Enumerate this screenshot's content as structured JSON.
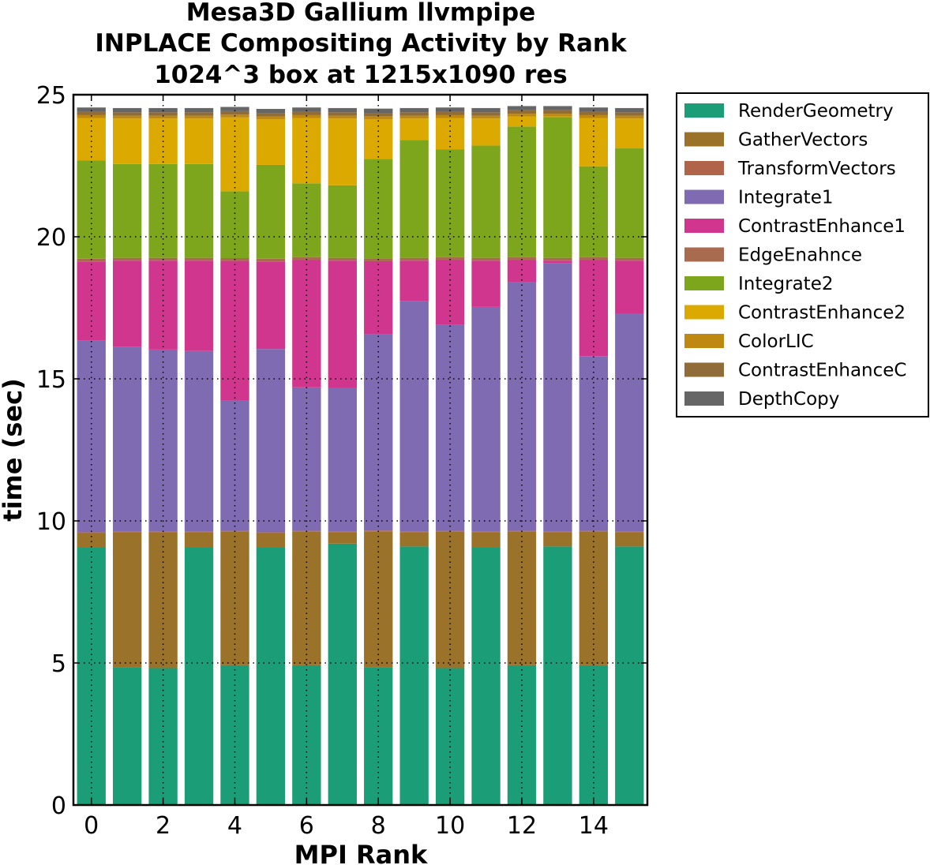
{
  "chart_data": {
    "type": "bar",
    "stacked": true,
    "title_lines": [
      "Mesa3D Gallium llvmpipe",
      "INPLACE Compositing Activity by Rank",
      "1024^3 box at 1215x1090 res"
    ],
    "xlabel": "MPI Rank",
    "ylabel": "time (sec)",
    "x": [
      0,
      1,
      2,
      3,
      4,
      5,
      6,
      7,
      8,
      9,
      10,
      11,
      12,
      13,
      14,
      15
    ],
    "xticks": [
      "0",
      "2",
      "4",
      "6",
      "8",
      "10",
      "12",
      "14"
    ],
    "yticks": [
      "0",
      "5",
      "10",
      "15",
      "20",
      "25"
    ],
    "xlim": [
      -0.5,
      15.5
    ],
    "ylim": [
      0,
      25
    ],
    "grid": true,
    "legend_position": "outside-right",
    "series": [
      {
        "name": "RenderGeometry",
        "color": "#1b9e77",
        "values": [
          9.07,
          4.85,
          4.82,
          9.07,
          4.92,
          9.07,
          4.92,
          9.2,
          4.85,
          9.1,
          4.82,
          9.07,
          4.92,
          9.1,
          4.92,
          9.1
        ]
      },
      {
        "name": "GatherVectors",
        "color": "#9a722a",
        "values": [
          0.5,
          4.75,
          4.78,
          0.53,
          4.7,
          0.5,
          4.7,
          0.4,
          4.78,
          0.5,
          4.8,
          0.53,
          4.7,
          0.5,
          4.7,
          0.5
        ]
      },
      {
        "name": "TransformVectors",
        "color": "#b0654b",
        "values": [
          0.03,
          0.03,
          0.03,
          0.03,
          0.03,
          0.03,
          0.03,
          0.03,
          0.03,
          0.03,
          0.03,
          0.03,
          0.03,
          0.03,
          0.03,
          0.03
        ]
      },
      {
        "name": "Integrate1",
        "color": "#7e6bb1",
        "values": [
          6.75,
          6.5,
          6.4,
          6.35,
          4.6,
          6.45,
          5.05,
          5.05,
          6.9,
          8.1,
          7.25,
          7.9,
          8.75,
          9.45,
          6.15,
          7.65
        ]
      },
      {
        "name": "ContrastEnhance1",
        "color": "#d1368e",
        "values": [
          2.78,
          3.03,
          3.13,
          3.18,
          4.9,
          3.08,
          4.48,
          4.48,
          2.58,
          1.43,
          2.28,
          1.63,
          0.78,
          0.08,
          3.38,
          1.88
        ]
      },
      {
        "name": "EdgeEnahnce",
        "color": "#a96b4f",
        "values": [
          0.1,
          0.1,
          0.1,
          0.1,
          0.1,
          0.1,
          0.1,
          0.1,
          0.1,
          0.1,
          0.1,
          0.1,
          0.1,
          0.1,
          0.1,
          0.1
        ]
      },
      {
        "name": "Integrate2",
        "color": "#7ea61c",
        "values": [
          3.45,
          3.3,
          3.3,
          3.3,
          2.35,
          3.3,
          2.6,
          2.55,
          3.5,
          4.15,
          3.8,
          3.95,
          4.6,
          4.95,
          3.2,
          3.85
        ]
      },
      {
        "name": "ContrastEnhance2",
        "color": "#dba900",
        "values": [
          1.5,
          1.6,
          1.6,
          1.6,
          2.6,
          1.6,
          2.3,
          2.35,
          1.4,
          0.75,
          1.1,
          0.95,
          0.35,
          0.02,
          1.7,
          1.05
        ]
      },
      {
        "name": "ColorLIC",
        "color": "#bf8911",
        "values": [
          0.1,
          0.1,
          0.1,
          0.1,
          0.1,
          0.1,
          0.1,
          0.1,
          0.1,
          0.1,
          0.1,
          0.1,
          0.1,
          0.1,
          0.1,
          0.1
        ]
      },
      {
        "name": "ContrastEnhanceC",
        "color": "#8f6c38",
        "values": [
          0.12,
          0.12,
          0.12,
          0.12,
          0.12,
          0.12,
          0.12,
          0.12,
          0.12,
          0.12,
          0.12,
          0.12,
          0.12,
          0.12,
          0.12,
          0.12
        ]
      },
      {
        "name": "DepthCopy",
        "color": "#666666",
        "values": [
          0.15,
          0.15,
          0.15,
          0.15,
          0.15,
          0.15,
          0.15,
          0.15,
          0.15,
          0.15,
          0.15,
          0.15,
          0.15,
          0.15,
          0.15,
          0.15
        ]
      }
    ]
  }
}
